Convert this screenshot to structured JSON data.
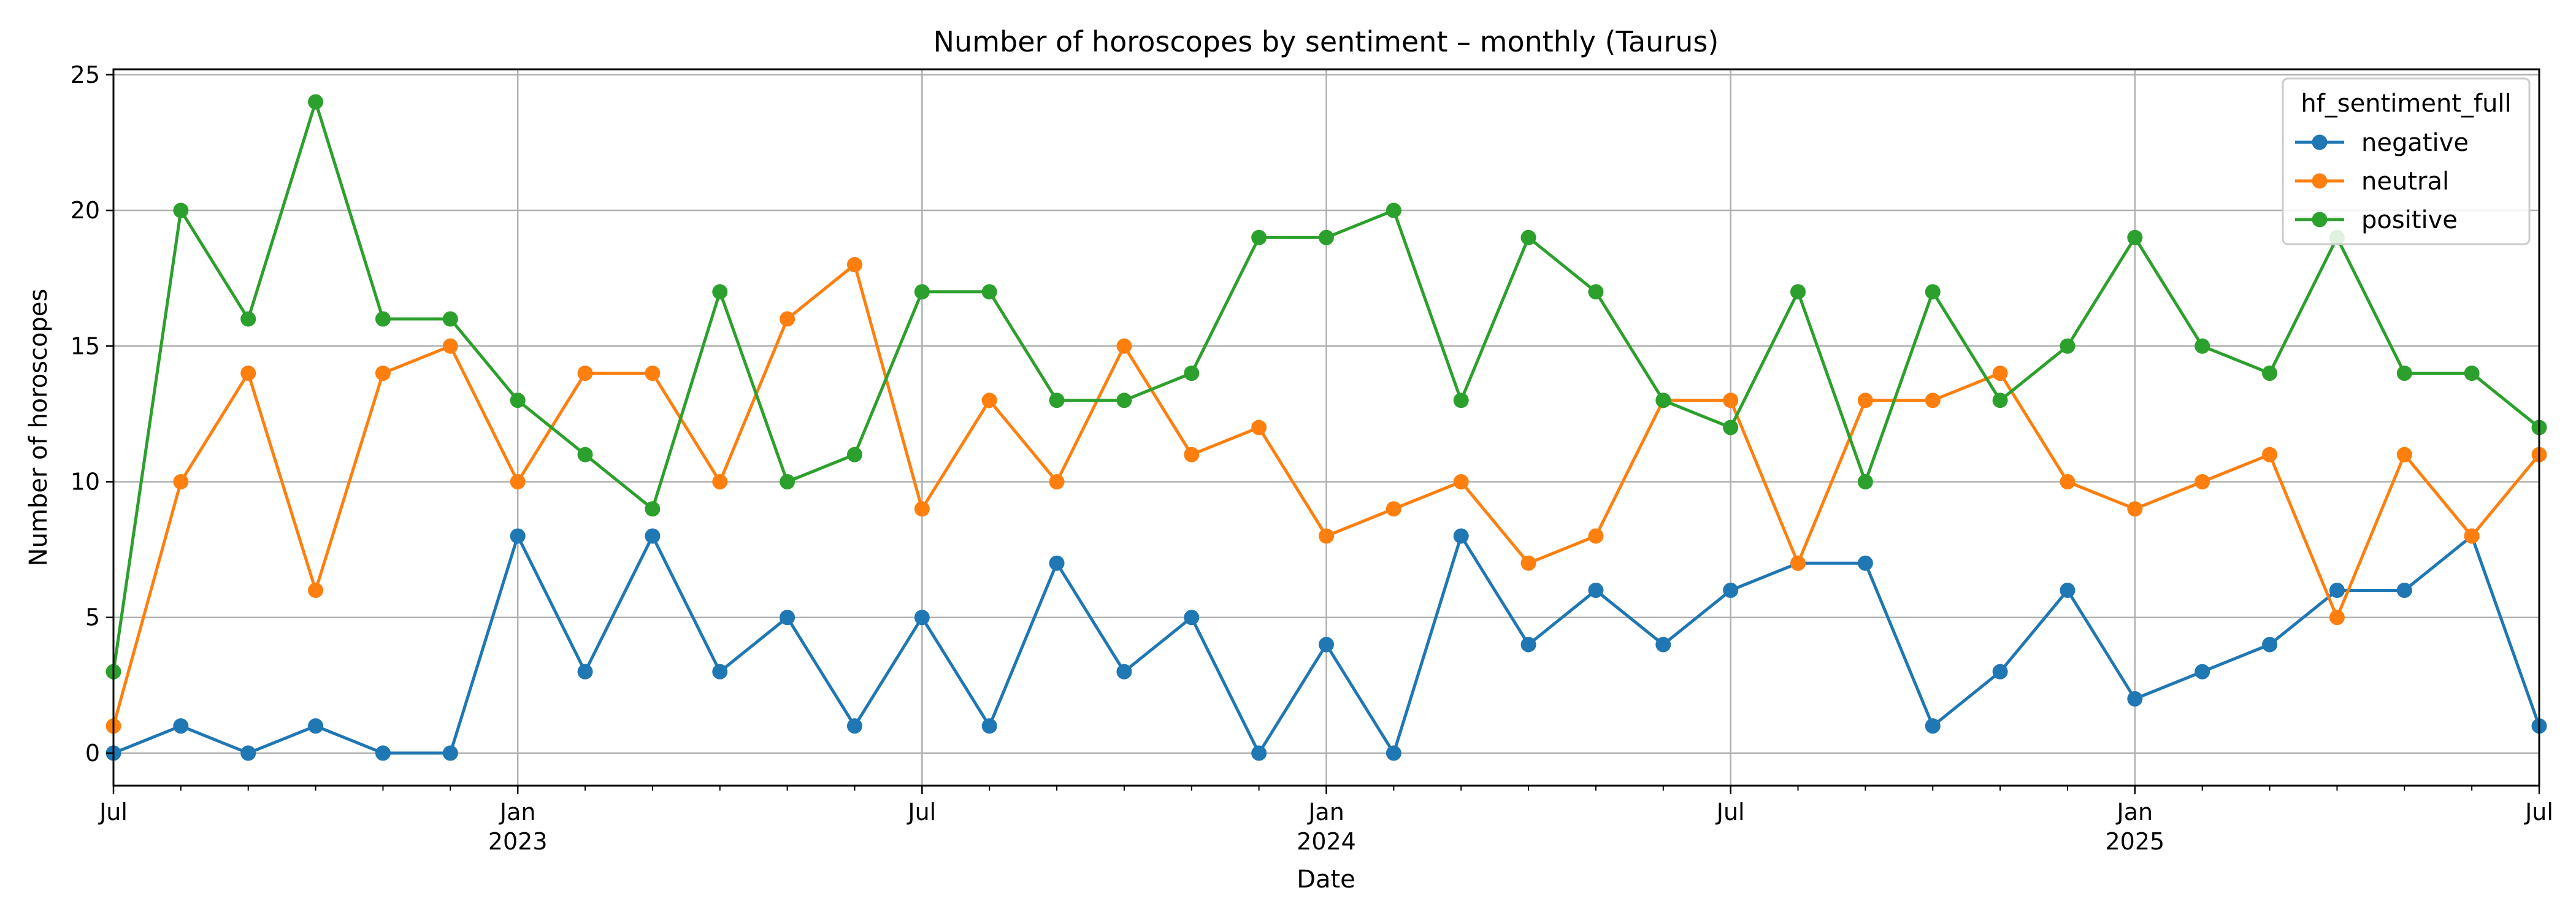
{
  "chart_data": {
    "type": "line",
    "title": "Number of horoscopes by sentiment – monthly (Taurus)",
    "xlabel": "Date",
    "ylabel": "Number of horoscopes",
    "ylim": [
      -1.2,
      25.2
    ],
    "yticks": [
      0,
      5,
      10,
      15,
      20,
      25
    ],
    "xlim": [
      "2022-07",
      "2025-07"
    ],
    "xticks": [
      {
        "month": "2022-07",
        "label": "Jul",
        "year": ""
      },
      {
        "month": "2023-01",
        "label": "Jan",
        "year": "2023"
      },
      {
        "month": "2023-07",
        "label": "Jul",
        "year": ""
      },
      {
        "month": "2024-01",
        "label": "Jan",
        "year": "2024"
      },
      {
        "month": "2024-07",
        "label": "Jul",
        "year": ""
      },
      {
        "month": "2025-01",
        "label": "Jan",
        "year": "2025"
      },
      {
        "month": "2025-07",
        "label": "Jul",
        "year": ""
      }
    ],
    "grid": true,
    "legend": {
      "title": "hf_sentiment_full",
      "placement": "top-right"
    },
    "x": [
      "2022-07",
      "2022-08",
      "2022-09",
      "2022-10",
      "2022-11",
      "2022-12",
      "2023-01",
      "2023-02",
      "2023-03",
      "2023-04",
      "2023-05",
      "2023-06",
      "2023-07",
      "2023-08",
      "2023-09",
      "2023-10",
      "2023-11",
      "2023-12",
      "2024-01",
      "2024-02",
      "2024-03",
      "2024-04",
      "2024-05",
      "2024-06",
      "2024-07",
      "2024-08",
      "2024-09",
      "2024-10",
      "2024-11",
      "2024-12",
      "2025-01",
      "2025-02",
      "2025-03",
      "2025-04",
      "2025-05",
      "2025-06",
      "2025-07"
    ],
    "series": [
      {
        "name": "negative",
        "color": "#1f77b4",
        "values": [
          0,
          1,
          0,
          1,
          0,
          0,
          8,
          3,
          8,
          3,
          5,
          1,
          5,
          1,
          7,
          3,
          5,
          0,
          4,
          0,
          8,
          4,
          6,
          4,
          6,
          7,
          7,
          1,
          3,
          6,
          2,
          3,
          4,
          6,
          6,
          8,
          1
        ]
      },
      {
        "name": "neutral",
        "color": "#ff7f0e",
        "values": [
          1,
          10,
          14,
          6,
          14,
          15,
          10,
          14,
          14,
          10,
          16,
          18,
          9,
          13,
          10,
          15,
          11,
          12,
          8,
          9,
          10,
          7,
          8,
          13,
          13,
          7,
          13,
          13,
          14,
          10,
          9,
          10,
          11,
          5,
          11,
          8,
          11
        ]
      },
      {
        "name": "positive",
        "color": "#2ca02c",
        "values": [
          3,
          20,
          16,
          24,
          16,
          16,
          13,
          11,
          9,
          17,
          10,
          11,
          17,
          17,
          13,
          13,
          14,
          19,
          19,
          20,
          13,
          19,
          17,
          13,
          12,
          17,
          10,
          17,
          13,
          15,
          19,
          15,
          14,
          19,
          14,
          14,
          12
        ]
      }
    ]
  }
}
